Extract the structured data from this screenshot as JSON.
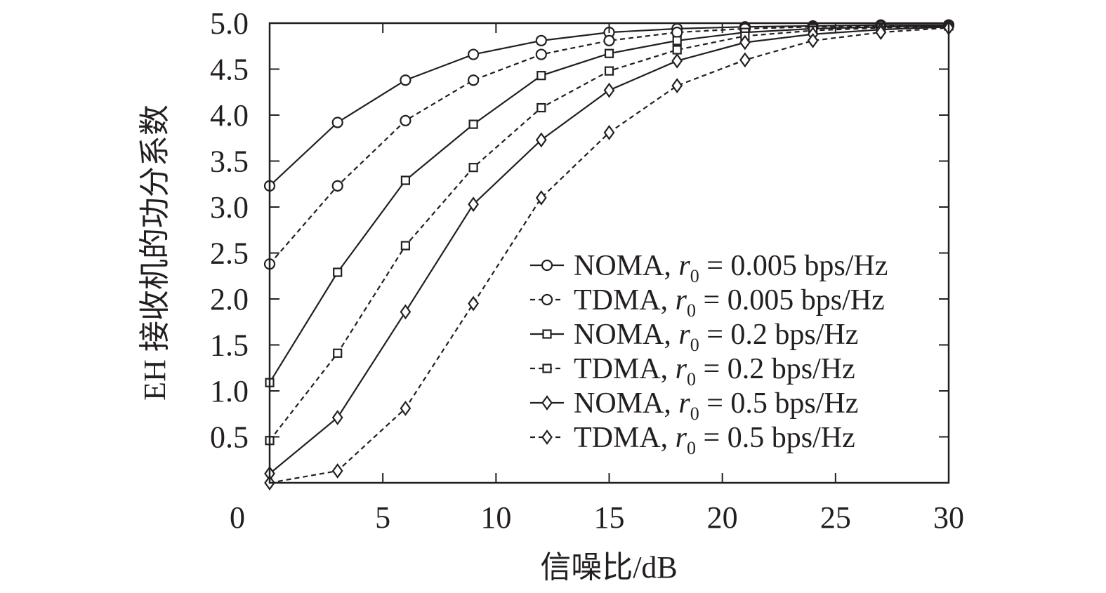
{
  "chart_data": {
    "type": "line",
    "title": "",
    "xlabel": "信噪比/dB",
    "ylabel": "EH 接收机的功分系数",
    "xlim": [
      0,
      30
    ],
    "ylim": [
      0,
      5.0
    ],
    "x_ticks": [
      0,
      5,
      10,
      15,
      20,
      25,
      30
    ],
    "x_tick_labels": [
      "0",
      "5",
      "10",
      "15",
      "20",
      "25",
      "30"
    ],
    "y_ticks": [
      0.5,
      1.0,
      1.5,
      2.0,
      2.5,
      3.0,
      3.5,
      4.0,
      4.5,
      5.0
    ],
    "y_tick_labels": [
      "0.5",
      "1.0",
      "1.5",
      "2.0",
      "2.5",
      "3.0",
      "3.5",
      "4.0",
      "4.5",
      "5.0"
    ],
    "grid": false,
    "legend_position": "lower-right",
    "series": [
      {
        "name": "NOMA, r0 = 0.005 bps/Hz",
        "scheme": "NOMA",
        "rate_label": "= 0.005 bps/Hz",
        "marker": "circle",
        "line": "solid",
        "x": [
          0,
          3,
          6,
          9,
          12,
          15,
          18,
          21,
          24,
          27,
          30
        ],
        "y": [
          3.23,
          3.92,
          4.38,
          4.66,
          4.81,
          4.9,
          4.94,
          4.96,
          4.97,
          4.98,
          4.98
        ]
      },
      {
        "name": "TDMA, r0 = 0.005 bps/Hz",
        "scheme": "TDMA",
        "rate_label": "= 0.005 bps/Hz",
        "marker": "circle",
        "line": "dashed",
        "x": [
          0,
          3,
          6,
          9,
          12,
          15,
          18,
          21,
          24,
          27,
          30
        ],
        "y": [
          2.38,
          3.23,
          3.94,
          4.38,
          4.66,
          4.81,
          4.9,
          4.94,
          4.96,
          4.97,
          4.98
        ]
      },
      {
        "name": "NOMA, r0 = 0.2 bps/Hz",
        "scheme": "NOMA",
        "rate_label": "= 0.2 bps/Hz",
        "marker": "square",
        "line": "solid",
        "x": [
          0,
          3,
          6,
          9,
          12,
          15,
          18,
          21,
          24,
          27,
          30
        ],
        "y": [
          1.09,
          2.29,
          3.29,
          3.9,
          4.43,
          4.67,
          4.81,
          4.9,
          4.94,
          4.96,
          4.97
        ]
      },
      {
        "name": "TDMA, r0 = 0.2 bps/Hz",
        "scheme": "TDMA",
        "rate_label": "= 0.2 bps/Hz",
        "marker": "square",
        "line": "dashed",
        "x": [
          0,
          3,
          6,
          9,
          12,
          15,
          18,
          21,
          24,
          27,
          30
        ],
        "y": [
          0.46,
          1.41,
          2.58,
          3.43,
          4.08,
          4.48,
          4.71,
          4.86,
          4.92,
          4.95,
          4.97
        ]
      },
      {
        "name": "NOMA, r0 = 0.5 bps/Hz",
        "scheme": "NOMA",
        "rate_label": "= 0.5 bps/Hz",
        "marker": "diamond",
        "line": "solid",
        "x": [
          0,
          3,
          6,
          9,
          12,
          15,
          18,
          21,
          24,
          27,
          30
        ],
        "y": [
          0.1,
          0.71,
          1.86,
          3.03,
          3.73,
          4.27,
          4.59,
          4.79,
          4.88,
          4.93,
          4.96
        ]
      },
      {
        "name": "TDMA, r0 = 0.5 bps/Hz",
        "scheme": "TDMA",
        "rate_label": "= 0.5 bps/Hz",
        "marker": "diamond",
        "line": "dashed",
        "x": [
          0,
          3,
          6,
          9,
          12,
          15,
          18,
          21,
          24,
          27,
          30
        ],
        "y": [
          0.0,
          0.13,
          0.81,
          1.95,
          3.1,
          3.81,
          4.32,
          4.6,
          4.81,
          4.9,
          4.95
        ]
      }
    ],
    "legend_symbol": "r",
    "legend_subscript": "0"
  }
}
